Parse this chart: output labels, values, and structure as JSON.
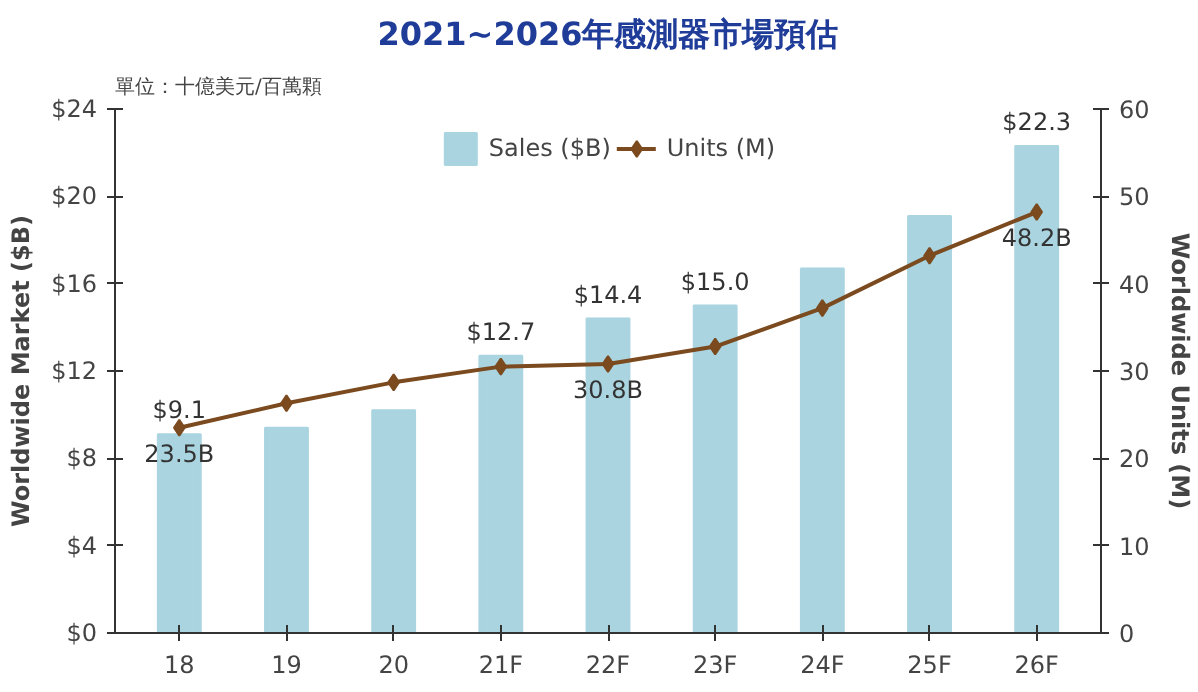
{
  "chart_data": {
    "type": "bar",
    "title": "2021~2026年感測器市場預估",
    "subtitle": "單位：十億美元/百萬顆",
    "categories": [
      "18",
      "19",
      "20",
      "21F",
      "22F",
      "23F",
      "24F",
      "25F",
      "26F"
    ],
    "series": [
      {
        "name": "Sales ($B)",
        "color": "#a9d4e0",
        "values": [
          9.1,
          9.4,
          10.2,
          12.7,
          14.4,
          15.0,
          16.7,
          19.1,
          22.3
        ],
        "value_labels": [
          "$9.1",
          null,
          null,
          "$12.7",
          "$14.4",
          "$15.0",
          null,
          null,
          "$22.3"
        ]
      },
      {
        "name": "Units (M)",
        "type": "line",
        "axis": "y2",
        "color": "#7b4a1e",
        "marker": "diamond",
        "values": [
          23.5,
          26.3,
          28.7,
          30.5,
          30.8,
          32.8,
          37.2,
          43.2,
          48.2
        ],
        "value_labels": [
          "23.5B",
          null,
          null,
          null,
          "30.8B",
          null,
          null,
          null,
          "48.2B"
        ]
      }
    ],
    "ylabel": "Worldwide Market ($B)",
    "y2label": "Worldwide Units (M)",
    "ylim": [
      0,
      24
    ],
    "yticks": [
      {
        "value": 0,
        "label": "$0"
      },
      {
        "value": 4,
        "label": "$4"
      },
      {
        "value": 8,
        "label": "$8"
      },
      {
        "value": 12,
        "label": "$12"
      },
      {
        "value": 16,
        "label": "$16"
      },
      {
        "value": 20,
        "label": "$20"
      },
      {
        "value": 24,
        "label": "$24"
      }
    ],
    "y2lim": [
      0,
      60
    ],
    "y2ticks": [
      0,
      10,
      20,
      30,
      40,
      50,
      60
    ],
    "grid": false,
    "legend": "top"
  }
}
